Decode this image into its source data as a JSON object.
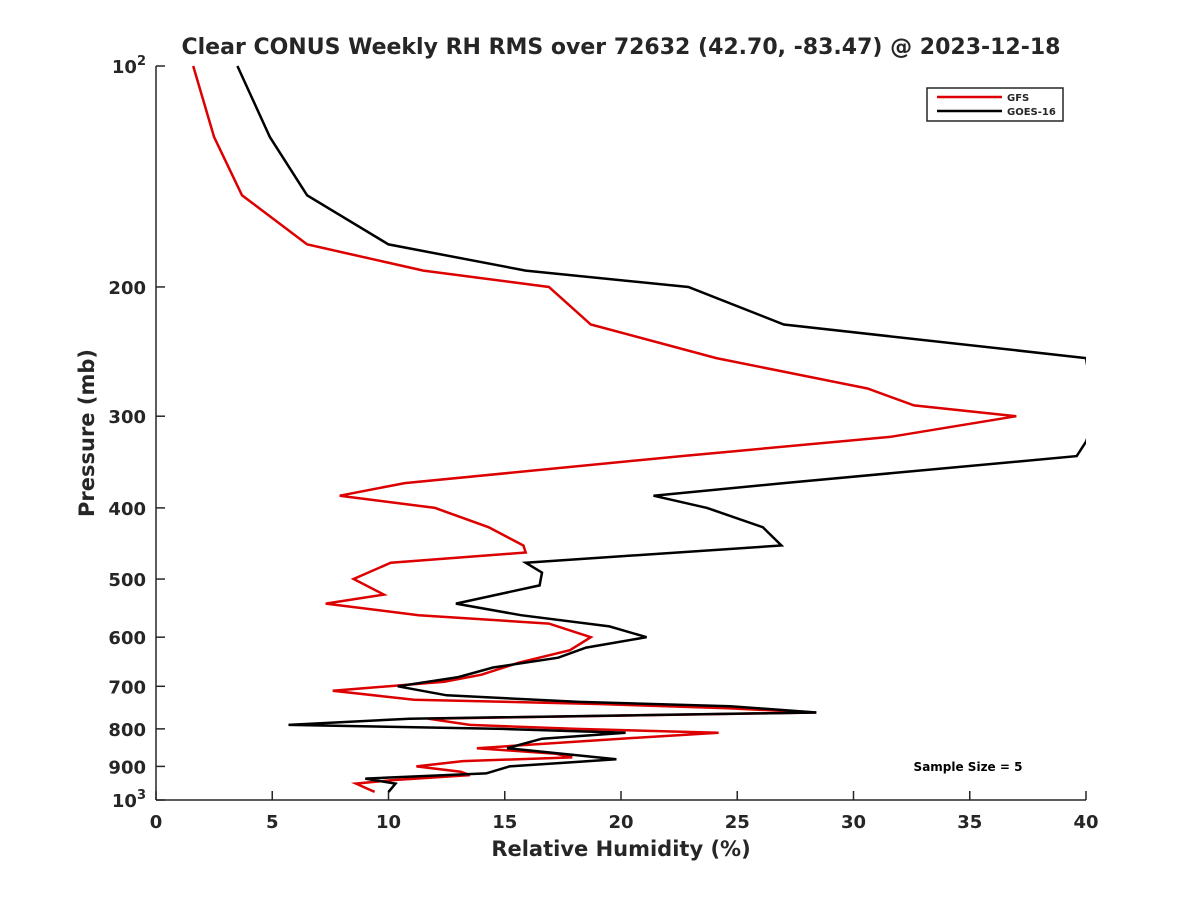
{
  "chart_data": {
    "type": "line",
    "title": "Clear CONUS Weekly RH RMS over 72632 (42.70, -83.47) @ 2023-12-18",
    "xlabel": "Relative Humidity (%)",
    "ylabel": "Pressure (mb)",
    "xlim": [
      0,
      40
    ],
    "ylim": [
      100,
      1000
    ],
    "y_scale": "log",
    "y_reversed": true,
    "x_ticks": [
      "0",
      "5",
      "10",
      "15",
      "20",
      "25",
      "30",
      "35",
      "40"
    ],
    "y_ticks": [
      {
        "value": 100,
        "label": "10",
        "sup": "2"
      },
      {
        "value": 200,
        "label": "200",
        "sup": ""
      },
      {
        "value": 300,
        "label": "300",
        "sup": ""
      },
      {
        "value": 400,
        "label": "400",
        "sup": ""
      },
      {
        "value": 500,
        "label": "500",
        "sup": ""
      },
      {
        "value": 600,
        "label": "600",
        "sup": ""
      },
      {
        "value": 700,
        "label": "700",
        "sup": ""
      },
      {
        "value": 800,
        "label": "800",
        "sup": ""
      },
      {
        "value": 900,
        "label": "900",
        "sup": ""
      },
      {
        "value": 1000,
        "label": "10",
        "sup": "3"
      }
    ],
    "legend_position": "top-right",
    "grid": false,
    "annotation": "Sample Size = 5",
    "series": [
      {
        "name": "GFS",
        "color": "#dd0000",
        "points": [
          [
            1.6,
            100
          ],
          [
            2.5,
            125
          ],
          [
            3.7,
            150
          ],
          [
            6.5,
            175
          ],
          [
            11.5,
            190
          ],
          [
            16.9,
            200
          ],
          [
            18.7,
            225
          ],
          [
            24.1,
            250
          ],
          [
            30.6,
            275
          ],
          [
            32.6,
            290
          ],
          [
            37.0,
            300
          ],
          [
            31.6,
            320
          ],
          [
            22.6,
            340
          ],
          [
            10.7,
            370
          ],
          [
            7.9,
            385
          ],
          [
            12.0,
            400
          ],
          [
            14.3,
            425
          ],
          [
            15.8,
            450
          ],
          [
            15.9,
            460
          ],
          [
            10.1,
            475
          ],
          [
            8.5,
            500
          ],
          [
            9.8,
            525
          ],
          [
            7.3,
            540
          ],
          [
            11.3,
            560
          ],
          [
            16.9,
            575
          ],
          [
            18.7,
            600
          ],
          [
            17.8,
            625
          ],
          [
            15.6,
            650
          ],
          [
            14.0,
            675
          ],
          [
            12.4,
            690
          ],
          [
            7.6,
            710
          ],
          [
            11.1,
            730
          ],
          [
            19.0,
            740
          ],
          [
            24.6,
            750
          ],
          [
            28.4,
            760
          ],
          [
            11.7,
            775
          ],
          [
            13.5,
            790
          ],
          [
            18.1,
            800
          ],
          [
            24.2,
            810
          ],
          [
            20.0,
            825
          ],
          [
            13.8,
            850
          ],
          [
            17.2,
            865
          ],
          [
            17.9,
            875
          ],
          [
            13.2,
            885
          ],
          [
            11.2,
            900
          ],
          [
            13.1,
            915
          ],
          [
            13.5,
            925
          ],
          [
            10.1,
            940
          ],
          [
            8.6,
            950
          ],
          [
            9.4,
            975
          ]
        ]
      },
      {
        "name": "GOES-16",
        "color": "#000000",
        "points": [
          [
            3.5,
            100
          ],
          [
            4.9,
            125
          ],
          [
            6.5,
            150
          ],
          [
            10.0,
            175
          ],
          [
            15.9,
            190
          ],
          [
            22.9,
            200
          ],
          [
            27.0,
            225
          ],
          [
            40.0,
            250
          ],
          [
            40.4,
            300
          ],
          [
            40.0,
            325
          ],
          [
            39.6,
            340
          ],
          [
            27.0,
            370
          ],
          [
            21.4,
            385
          ],
          [
            23.7,
            400
          ],
          [
            26.1,
            425
          ],
          [
            26.9,
            450
          ],
          [
            15.9,
            475
          ],
          [
            16.6,
            490
          ],
          [
            16.5,
            510
          ],
          [
            12.9,
            540
          ],
          [
            15.7,
            560
          ],
          [
            19.5,
            580
          ],
          [
            21.1,
            600
          ],
          [
            18.5,
            620
          ],
          [
            17.3,
            640
          ],
          [
            14.5,
            660
          ],
          [
            13.0,
            680
          ],
          [
            10.4,
            700
          ],
          [
            12.5,
            720
          ],
          [
            18.2,
            735
          ],
          [
            24.7,
            745
          ],
          [
            28.4,
            760
          ],
          [
            10.9,
            775
          ],
          [
            5.7,
            790
          ],
          [
            14.9,
            800
          ],
          [
            20.2,
            810
          ],
          [
            16.6,
            825
          ],
          [
            15.1,
            850
          ],
          [
            19.8,
            880
          ],
          [
            15.2,
            900
          ],
          [
            14.2,
            920
          ],
          [
            9.0,
            935
          ],
          [
            10.3,
            950
          ],
          [
            10.0,
            975
          ]
        ]
      }
    ]
  }
}
